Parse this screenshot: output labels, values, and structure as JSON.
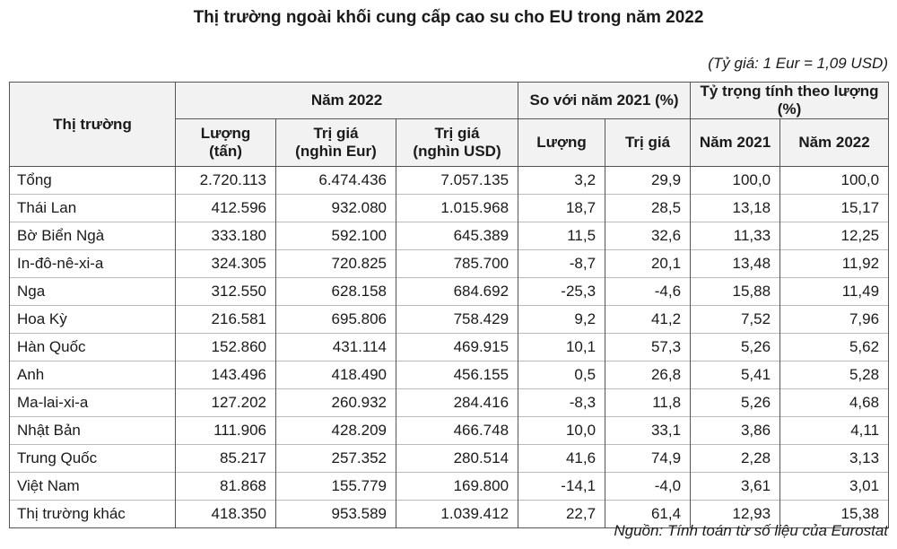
{
  "title": "Thị trường ngoài khối cung cấp cao su cho EU trong năm 2022",
  "exchange_rate": "(Tỷ giá: 1 Eur = 1,09 USD)",
  "source": "Nguồn: Tính toán từ số liệu của Eurostat",
  "header": {
    "market": "Thị trường",
    "group_2022": "Năm 2022",
    "group_vs2021": "So với năm 2021 (%)",
    "group_share": "Tỷ trọng tính theo lượng (%)",
    "volume": [
      "Lượng",
      "(tấn)"
    ],
    "value_eur": [
      "Trị giá",
      "(nghìn Eur)"
    ],
    "value_usd": [
      "Trị giá",
      "(nghìn USD)"
    ],
    "vs_volume": "Lượng",
    "vs_value": "Trị giá",
    "share_2021": "Năm 2021",
    "share_2022": "Năm 2022"
  },
  "rows": [
    [
      "Tổng",
      "2.720.113",
      "6.474.436",
      "7.057.135",
      "3,2",
      "29,9",
      "100,0",
      "100,0"
    ],
    [
      "Thái Lan",
      "412.596",
      "932.080",
      "1.015.968",
      "18,7",
      "28,5",
      "13,18",
      "15,17"
    ],
    [
      "Bờ Biển Ngà",
      "333.180",
      "592.100",
      "645.389",
      "11,5",
      "32,6",
      "11,33",
      "12,25"
    ],
    [
      "In-đô-nê-xi-a",
      "324.305",
      "720.825",
      "785.700",
      "-8,7",
      "20,1",
      "13,48",
      "11,92"
    ],
    [
      "Nga",
      "312.550",
      "628.158",
      "684.692",
      "-25,3",
      "-4,6",
      "15,88",
      "11,49"
    ],
    [
      "Hoa Kỳ",
      "216.581",
      "695.806",
      "758.429",
      "9,2",
      "41,2",
      "7,52",
      "7,96"
    ],
    [
      "Hàn Quốc",
      "152.860",
      "431.114",
      "469.915",
      "10,1",
      "57,3",
      "5,26",
      "5,62"
    ],
    [
      "Anh",
      "143.496",
      "418.490",
      "456.155",
      "0,5",
      "26,8",
      "5,41",
      "5,28"
    ],
    [
      "Ma-lai-xi-a",
      "127.202",
      "260.932",
      "284.416",
      "-8,3",
      "11,8",
      "5,26",
      "4,68"
    ],
    [
      "Nhật Bản",
      "111.906",
      "428.209",
      "466.748",
      "10,0",
      "33,1",
      "3,86",
      "4,11"
    ],
    [
      "Trung Quốc",
      "85.217",
      "257.352",
      "280.514",
      "41,6",
      "74,9",
      "2,28",
      "3,13"
    ],
    [
      "Việt Nam",
      "81.868",
      "155.779",
      "169.800",
      "-14,1",
      "-4,0",
      "3,61",
      "3,01"
    ],
    [
      "Thị trường khác",
      "418.350",
      "953.589",
      "1.039.412",
      "22,7",
      "61,4",
      "12,93",
      "15,38"
    ]
  ]
}
